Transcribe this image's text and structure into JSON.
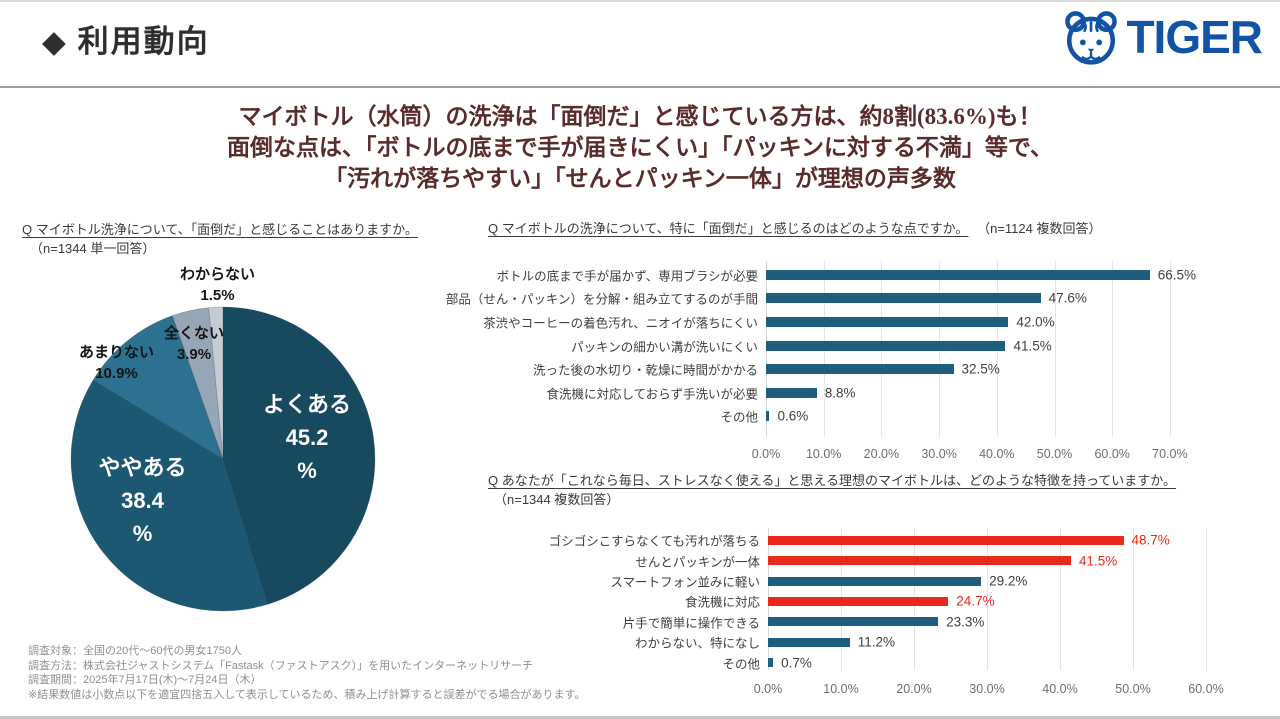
{
  "header": {
    "title": "◆ 利用動向",
    "brand": "TIGER",
    "brand_color": "#1353A5"
  },
  "headline": {
    "color": "#5A2B2B",
    "lines": [
      "マイボトル（水筒）の洗浄は「面倒だ」と感じている方は、約8割(83.6%)も！",
      "面倒な点は、「ボトルの底まで手が届きにくい」「パッキンに対する不満」等で、",
      "「汚れが落ちやすい」「せんとパッキン一体」が理想の声多数"
    ]
  },
  "chart_data": [
    {
      "type": "pie",
      "question": "Q マイボトル洗浄について、「面倒だ」と感じることはありますか。",
      "sample": "（n=1344 単一回答）",
      "direction": "clockwise",
      "start_angle_deg": 0,
      "slices": [
        {
          "label": "よくある",
          "value": 45.2,
          "display": "45.2\n%",
          "color": "#174A5F",
          "label_position": "inside"
        },
        {
          "label": "ややある",
          "value": 38.4,
          "display": "38.4\n%",
          "color": "#1D5873",
          "label_position": "inside"
        },
        {
          "label": "あまりない",
          "value": 10.9,
          "display": "10.9%",
          "color": "#2D7190",
          "label_position": "outside"
        },
        {
          "label": "全くない",
          "value": 3.9,
          "display": "3.9%",
          "color": "#97A6B7",
          "label_position": "outside"
        },
        {
          "label": "わからない",
          "value": 1.5,
          "display": "1.5%",
          "color": "#C3CBD4",
          "label_position": "outside"
        }
      ]
    },
    {
      "type": "bar",
      "question": "Q マイボトルの洗浄について、特に「面倒だ」と感じるのはどのような点ですか。",
      "sample": "（n=1124 複数回答）",
      "categories": [
        "ボトルの底まで手が届かず、専用ブラシが必要",
        "部品（せん・パッキン）を分解・組み立てするのが手間",
        "茶渋やコーヒーの着色汚れ、ニオイが落ちにくい",
        "パッキンの細かい溝が洗いにくい",
        "洗った後の水切り・乾燥に時間がかかる",
        "食洗機に対応しておらず手洗いが必要",
        "その他"
      ],
      "values": [
        66.5,
        47.6,
        42.0,
        41.5,
        32.5,
        8.8,
        0.6
      ],
      "bar_color": "#1F5F7D",
      "value_color": "#404040",
      "xlim": [
        0,
        70
      ],
      "ticks": [
        "0.0%",
        "10.0%",
        "20.0%",
        "30.0%",
        "40.0%",
        "50.0%",
        "60.0%",
        "70.0%"
      ]
    },
    {
      "type": "bar",
      "question": "Q あなたが「これなら毎日、ストレスなく使える」と思える理想のマイボトルは、どのような特徴を持っていますか。",
      "sample": "（n=1344 複数回答）",
      "categories": [
        "ゴシゴシこすらなくても汚れが落ちる",
        "せんとパッキンが一体",
        "スマートフォン並みに軽い",
        "食洗機に対応",
        "片手で簡単に操作できる",
        "わからない、特になし",
        "その他"
      ],
      "values": [
        48.7,
        41.5,
        29.2,
        24.7,
        23.3,
        11.2,
        0.7
      ],
      "bar_colors": [
        "#E8291C",
        "#E8291C",
        "#1F5F7D",
        "#E8291C",
        "#1F5F7D",
        "#1F5F7D",
        "#1F5F7D"
      ],
      "value_colors": [
        "#E8291C",
        "#E8291C",
        "#404040",
        "#E8291C",
        "#404040",
        "#404040",
        "#404040"
      ],
      "xlim": [
        0,
        60
      ],
      "ticks": [
        "0.0%",
        "10.0%",
        "20.0%",
        "30.0%",
        "40.0%",
        "50.0%",
        "60.0%"
      ]
    }
  ],
  "footnotes": [
    "調査対象：全国の20代～60代の男女1750人",
    "調査方法：株式会社ジャストシステム「Fastask（ファストアスク）」を用いたインターネットリサーチ",
    "調査期間：2025年7月17日(木)～7月24日（木）",
    "※結果数値は小数点以下を適宜四捨五入して表示しているため、積み上げ計算すると誤差がでる場合があります。"
  ]
}
